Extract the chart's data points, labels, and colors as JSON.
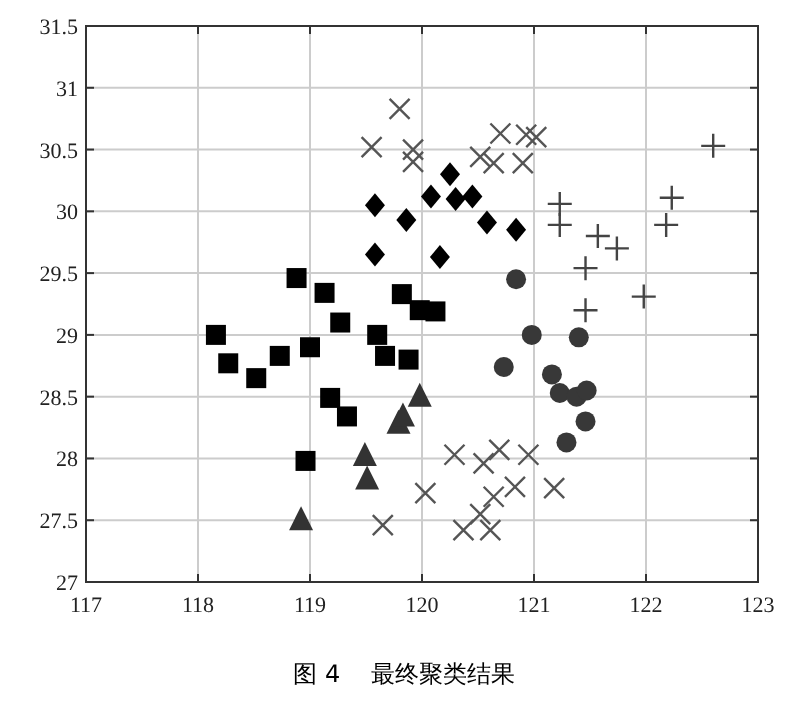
{
  "chart_data": {
    "type": "scatter",
    "xlim": [
      117,
      123
    ],
    "ylim": [
      27,
      31.5
    ],
    "xticks": [
      117,
      118,
      119,
      120,
      121,
      122,
      123
    ],
    "yticks": [
      27,
      27.5,
      28,
      28.5,
      29,
      29.5,
      30,
      30.5,
      31,
      31.5
    ],
    "grid": true,
    "annotations": [
      "图 4    最终聚类结果"
    ],
    "series": [
      {
        "color": "#000000",
        "marker": "square",
        "x": [
          118.16,
          118.27,
          118.52,
          118.73,
          118.88,
          119.0,
          119.13,
          119.27,
          119.18,
          119.33,
          118.96,
          119.6,
          119.67,
          119.82,
          119.88,
          119.98,
          120.12
        ],
        "values": [
          29.0,
          28.77,
          28.65,
          28.83,
          29.46,
          28.9,
          29.34,
          29.1,
          28.49,
          28.34,
          27.98,
          29.0,
          28.83,
          29.33,
          28.8,
          29.2,
          29.19
        ]
      },
      {
        "color": "#333333",
        "marker": "triangle",
        "x": [
          118.92,
          119.49,
          119.51,
          119.79,
          119.83,
          119.98
        ],
        "values": [
          27.5,
          28.02,
          27.83,
          28.28,
          28.34,
          28.5
        ]
      },
      {
        "color": "#000000",
        "marker": "diamond",
        "x": [
          119.58,
          119.86,
          119.58,
          120.16,
          120.08,
          120.25,
          120.3,
          120.45,
          120.58,
          120.84
        ],
        "values": [
          30.05,
          29.93,
          29.65,
          29.63,
          30.12,
          30.3,
          30.1,
          30.12,
          29.91,
          29.85
        ]
      },
      {
        "color": "#383838",
        "marker": "circle",
        "x": [
          120.84,
          120.98,
          121.4,
          120.73,
          121.16,
          121.23,
          121.38,
          121.47,
          121.46,
          121.29
        ],
        "values": [
          29.45,
          29.0,
          28.98,
          28.74,
          28.68,
          28.53,
          28.5,
          28.55,
          28.3,
          28.13
        ]
      },
      {
        "color": "#555555",
        "marker": "cross",
        "x": [
          119.8,
          119.55,
          119.92,
          119.92,
          120.7,
          120.93,
          121.02,
          120.52,
          120.64,
          120.9
        ],
        "values": [
          30.83,
          30.52,
          30.5,
          30.4,
          30.63,
          30.62,
          30.6,
          30.44,
          30.39,
          30.39
        ]
      },
      {
        "color": "#555555",
        "marker": "cross",
        "x": [
          120.29,
          120.55,
          120.69,
          120.95,
          120.03,
          120.64,
          120.83,
          121.18,
          120.52,
          120.37,
          120.61,
          119.65
        ],
        "values": [
          28.03,
          27.96,
          28.07,
          28.03,
          27.72,
          27.69,
          27.77,
          27.76,
          27.55,
          27.42,
          27.42,
          27.46
        ]
      },
      {
        "color": "#444444",
        "marker": "plus",
        "x": [
          122.6,
          121.23,
          121.23,
          122.23,
          122.18,
          121.57,
          121.74,
          121.46,
          121.98,
          121.46
        ],
        "values": [
          30.53,
          30.06,
          29.89,
          30.11,
          29.89,
          29.8,
          29.7,
          29.54,
          29.31,
          29.2
        ]
      }
    ]
  }
}
